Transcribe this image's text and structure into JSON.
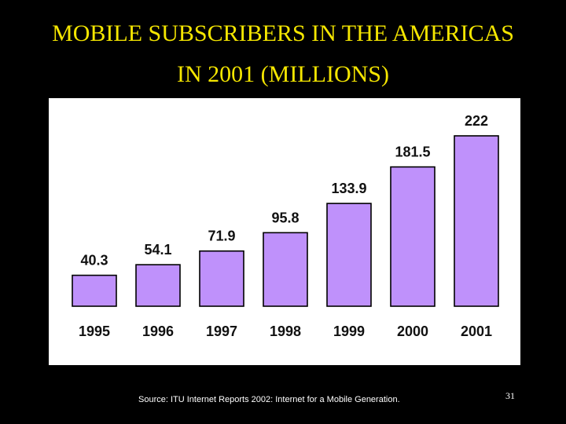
{
  "slide": {
    "title_line1": "MOBILE SUBSCRIBERS IN THE AMERICAS",
    "title_line2": "IN 2001 (MILLIONS)",
    "source": "Source: ITU Internet Reports 2002: Internet for a Mobile Generation.",
    "page_number": "31"
  },
  "colors": {
    "background": "#000000",
    "title": "#f5e600",
    "bar_fill": "#bf91fb",
    "panel": "#ffffff"
  },
  "chart_data": {
    "type": "bar",
    "title": "MOBILE SUBSCRIBERS IN THE AMERICAS IN 2001 (MILLIONS)",
    "categories": [
      "1995",
      "1996",
      "1997",
      "1998",
      "1999",
      "2000",
      "2001"
    ],
    "values": [
      40.3,
      54.1,
      71.9,
      95.8,
      133.9,
      181.5,
      222
    ],
    "value_labels": [
      "40.3",
      "54.1",
      "71.9",
      "95.8",
      "133.9",
      "181.5",
      "222"
    ],
    "xlabel": "",
    "ylabel": "",
    "ylim": [
      0,
      222
    ],
    "grid": false,
    "legend": "none"
  }
}
